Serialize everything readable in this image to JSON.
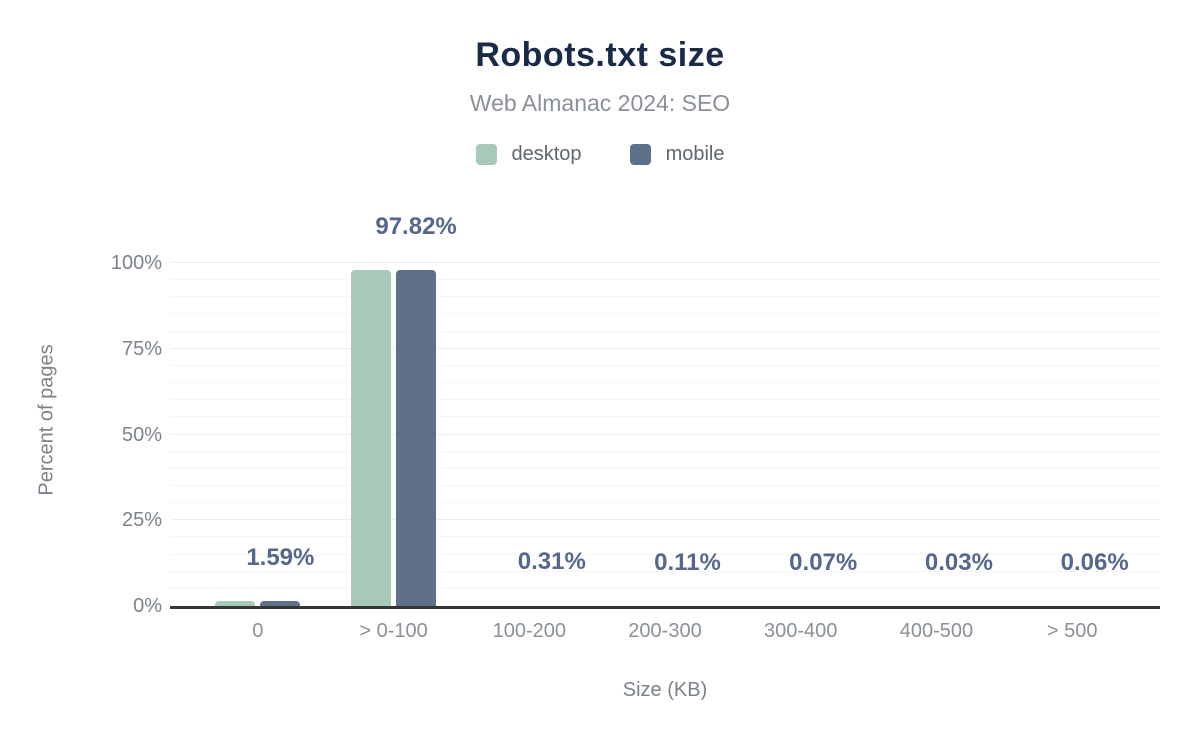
{
  "title": "Robots.txt size",
  "subtitle": "Web Almanac 2024: SEO",
  "legend": {
    "items": [
      {
        "label": "desktop",
        "color": "#a8c9b8"
      },
      {
        "label": "mobile",
        "color": "#5f708a"
      }
    ]
  },
  "colors": {
    "title": "#1a2b49",
    "subtitle": "#8a9097",
    "data_label": "#55678d",
    "axis_line": "#363636",
    "tick_label": "#7b828a",
    "desktop_bar": "#a8c9b8",
    "mobile_bar": "#5f708a"
  },
  "chart_data": {
    "type": "bar",
    "title": "Robots.txt size",
    "subtitle": "Web Almanac 2024: SEO",
    "categories": [
      "0",
      "> 0-100",
      "100-200",
      "200-300",
      "300-400",
      "400-500",
      "> 500"
    ],
    "series": [
      {
        "name": "desktop",
        "color": "#a8c9b8",
        "values": [
          1.59,
          97.82,
          0.31,
          0.11,
          0.07,
          0.03,
          0.06
        ]
      },
      {
        "name": "mobile",
        "color": "#5f708a",
        "values": [
          1.59,
          97.82,
          0.31,
          0.11,
          0.07,
          0.03,
          0.06
        ]
      }
    ],
    "data_labels": [
      "1.59%",
      "97.82%",
      "0.31%",
      "0.11%",
      "0.07%",
      "0.03%",
      "0.06%"
    ],
    "xlabel": "Size (KB)",
    "ylabel": "Percent of pages",
    "ylim": [
      0,
      100
    ],
    "yticks": [
      0,
      25,
      50,
      75,
      100
    ],
    "ytick_labels": [
      "0%",
      "25%",
      "50%",
      "75%",
      "100%"
    ],
    "grid": "horizontal: minor every 5%, major every 25%",
    "legend_position": "top"
  }
}
